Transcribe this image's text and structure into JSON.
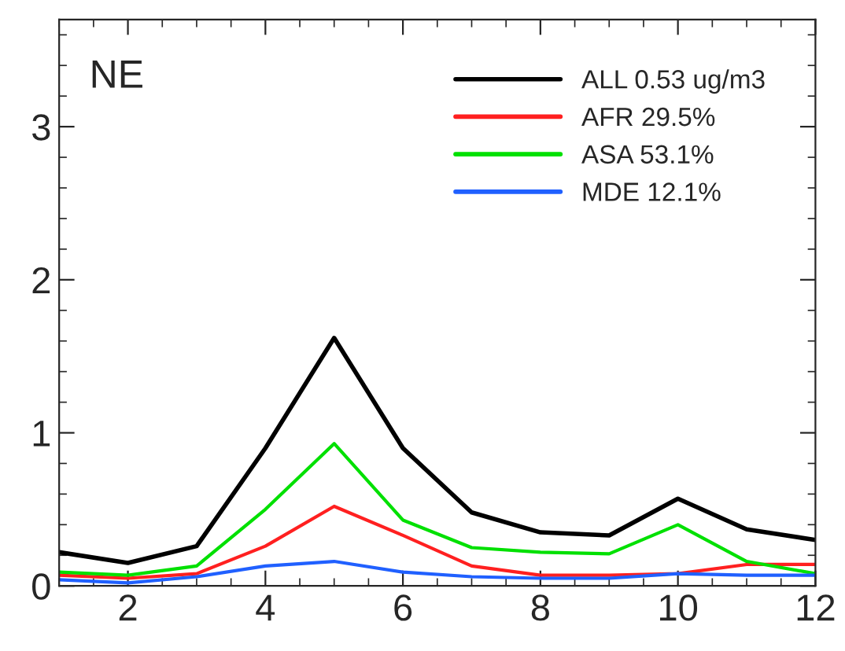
{
  "chart_data": {
    "type": "line",
    "x": [
      1,
      2,
      3,
      4,
      5,
      6,
      7,
      8,
      9,
      10,
      11,
      12
    ],
    "series": [
      {
        "name": "ALL 0.53 ug/m3",
        "color": "#000000",
        "values": [
          0.22,
          0.15,
          0.26,
          0.9,
          1.62,
          0.9,
          0.48,
          0.35,
          0.33,
          0.57,
          0.37,
          0.3
        ]
      },
      {
        "name": "AFR 29.5%",
        "color": "#ff2020",
        "values": [
          0.07,
          0.05,
          0.08,
          0.26,
          0.52,
          0.33,
          0.13,
          0.07,
          0.07,
          0.08,
          0.14,
          0.14
        ]
      },
      {
        "name": "ASA 53.1%",
        "color": "#00e000",
        "values": [
          0.09,
          0.07,
          0.13,
          0.5,
          0.93,
          0.43,
          0.25,
          0.22,
          0.21,
          0.4,
          0.16,
          0.08
        ]
      },
      {
        "name": "MDE 12.1%",
        "color": "#2060ff",
        "values": [
          0.04,
          0.02,
          0.06,
          0.13,
          0.16,
          0.09,
          0.06,
          0.05,
          0.05,
          0.08,
          0.07,
          0.07
        ]
      }
    ],
    "annotations": [
      "NE"
    ],
    "xlim": [
      1,
      12
    ],
    "ylim": [
      0,
      3.7
    ],
    "xticks": [
      2,
      4,
      6,
      8,
      10,
      12
    ],
    "yticks": [
      0,
      1,
      2,
      3
    ],
    "legend": "top right",
    "grid": false,
    "marker": "none",
    "line_style": "solid"
  }
}
